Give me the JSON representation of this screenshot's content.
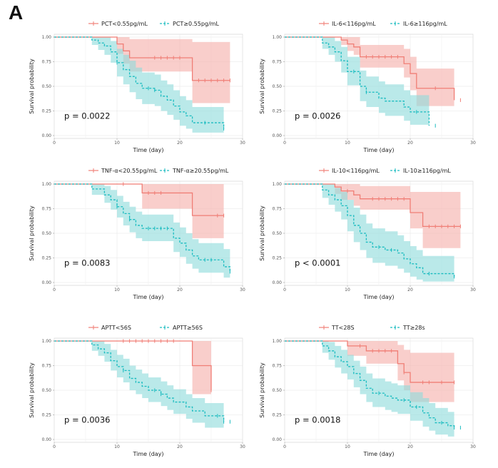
{
  "panel_label": "A",
  "colors": {
    "low": "#f07e76",
    "high": "#1bbcc0",
    "low_band": "#f6b0ab",
    "high_band": "#8fdbdc",
    "overlap": "#9aa3a3"
  },
  "chart_data": [
    {
      "type": "line",
      "legend": [
        "PCT<0.55pg/mL",
        "PCT≥0.55pg/mL"
      ],
      "legend_position": "top",
      "xlabel": "Time (day)",
      "ylabel": "Survival probability",
      "xticks": [
        "0",
        "10",
        "20",
        "30"
      ],
      "yticks": [
        "0.00",
        "0.25",
        "0.50",
        "0.75",
        "1.00"
      ],
      "xlim": [
        0,
        30
      ],
      "ylim": [
        0,
        1
      ],
      "grid": true,
      "p_value": "p = 0.0022",
      "series": [
        {
          "name": "PCT<0.55pg/mL",
          "style": "solid",
          "x": [
            0,
            10,
            11,
            12,
            14,
            22,
            28
          ],
          "y": [
            1.0,
            0.93,
            0.86,
            0.79,
            0.79,
            0.56,
            0.56
          ],
          "lower": [
            1.0,
            0.83,
            0.73,
            0.65,
            0.65,
            0.33,
            0.33
          ],
          "upper": [
            1.0,
            1.0,
            1.0,
            0.98,
            0.98,
            0.95,
            0.95
          ],
          "censor_x": [
            16,
            17,
            18,
            19,
            20,
            23,
            24,
            25,
            26,
            27,
            28
          ]
        },
        {
          "name": "PCT≥0.55pg/mL",
          "style": "dashed",
          "x": [
            0,
            6,
            7,
            8,
            9,
            10,
            11,
            12,
            13,
            14,
            16,
            17,
            18,
            19,
            20,
            21,
            22,
            27
          ],
          "y": [
            1.0,
            0.97,
            0.94,
            0.91,
            0.85,
            0.74,
            0.67,
            0.6,
            0.53,
            0.48,
            0.46,
            0.4,
            0.36,
            0.3,
            0.24,
            0.2,
            0.13,
            0.07
          ],
          "lower": [
            1.0,
            0.92,
            0.87,
            0.82,
            0.74,
            0.6,
            0.52,
            0.44,
            0.37,
            0.32,
            0.3,
            0.25,
            0.21,
            0.16,
            0.1,
            0.07,
            0.03,
            0.0
          ],
          "upper": [
            1.0,
            1.0,
            1.0,
            1.0,
            0.96,
            0.88,
            0.82,
            0.76,
            0.69,
            0.64,
            0.62,
            0.56,
            0.52,
            0.46,
            0.4,
            0.36,
            0.29,
            0.22
          ],
          "censor_x": [
            10,
            15,
            16,
            24,
            27
          ]
        }
      ]
    },
    {
      "type": "line",
      "legend": [
        "IL-6<116pg/mL",
        "IL-6≥116pg/mL"
      ],
      "legend_position": "top",
      "xlabel": "Time (day)",
      "ylabel": "Survival probability",
      "xticks": [
        "0",
        "10",
        "20",
        "30"
      ],
      "yticks": [
        "0.00",
        "0.25",
        "0.50",
        "0.75",
        "1.00"
      ],
      "xlim": [
        0,
        30
      ],
      "ylim": [
        0,
        1
      ],
      "grid": true,
      "p_value": "p = 0.0026",
      "series": [
        {
          "name": "IL-6<116pg/mL",
          "style": "solid",
          "x": [
            0,
            9,
            10,
            11,
            12,
            19,
            20,
            21,
            27
          ],
          "y": [
            1.0,
            0.97,
            0.93,
            0.9,
            0.8,
            0.73,
            0.63,
            0.48,
            0.36
          ],
          "lower": [
            1.0,
            0.92,
            0.86,
            0.82,
            0.69,
            0.59,
            0.46,
            0.3,
            0.16
          ],
          "upper": [
            1.0,
            1.0,
            1.0,
            1.0,
            0.92,
            0.88,
            0.8,
            0.68,
            0.58
          ],
          "censor_x": [
            13,
            14,
            15,
            16,
            17,
            18,
            24,
            28
          ]
        },
        {
          "name": "IL-6≥116pg/mL",
          "style": "dashed",
          "x": [
            0,
            6,
            7,
            8,
            9,
            10,
            12,
            13,
            15,
            16,
            19,
            20,
            23
          ],
          "y": [
            1.0,
            0.94,
            0.9,
            0.85,
            0.76,
            0.65,
            0.5,
            0.44,
            0.38,
            0.35,
            0.29,
            0.24,
            0.1
          ],
          "lower": [
            1.0,
            0.88,
            0.82,
            0.75,
            0.64,
            0.51,
            0.35,
            0.29,
            0.23,
            0.2,
            0.15,
            0.11,
            0.02
          ],
          "upper": [
            1.0,
            1.0,
            1.0,
            0.96,
            0.9,
            0.8,
            0.66,
            0.6,
            0.55,
            0.52,
            0.46,
            0.41,
            0.3
          ],
          "censor_x": [
            11,
            13,
            21,
            24
          ]
        }
      ]
    },
    {
      "type": "line",
      "legend": [
        "TNF-α<20.55pg/mL",
        "TNF-α≥20.55pg/mL"
      ],
      "legend_position": "top",
      "xlabel": "Time (day)",
      "ylabel": "Survival probability",
      "xticks": [
        "0",
        "10",
        "20",
        "30"
      ],
      "yticks": [
        "0.00",
        "0.25",
        "0.50",
        "0.75",
        "1.00"
      ],
      "xlim": [
        0,
        30
      ],
      "ylim": [
        0,
        1
      ],
      "grid": true,
      "p_value": "p = 0.0083",
      "series": [
        {
          "name": "TNF-α<20.55pg/mL",
          "style": "solid",
          "x": [
            0,
            14,
            22,
            27
          ],
          "y": [
            1.0,
            0.91,
            0.68,
            0.68
          ],
          "lower": [
            1.0,
            0.75,
            0.45,
            0.45
          ],
          "upper": [
            1.0,
            1.0,
            1.0,
            1.0
          ],
          "censor_x": [
            11,
            15,
            16,
            17,
            26,
            27
          ]
        },
        {
          "name": "TNF-α≥20.55pg/mL",
          "style": "dashed",
          "x": [
            0,
            6,
            8,
            9,
            10,
            11,
            12,
            13,
            14,
            19,
            20,
            21,
            22,
            23,
            27,
            28
          ],
          "y": [
            1.0,
            0.95,
            0.89,
            0.84,
            0.77,
            0.7,
            0.64,
            0.58,
            0.55,
            0.45,
            0.4,
            0.33,
            0.27,
            0.23,
            0.16,
            0.11
          ],
          "lower": [
            1.0,
            0.89,
            0.81,
            0.74,
            0.66,
            0.58,
            0.51,
            0.45,
            0.42,
            0.31,
            0.26,
            0.19,
            0.14,
            0.1,
            0.05,
            0.0
          ],
          "upper": [
            1.0,
            1.0,
            0.98,
            0.94,
            0.88,
            0.82,
            0.77,
            0.72,
            0.69,
            0.61,
            0.56,
            0.5,
            0.44,
            0.4,
            0.34,
            0.28
          ],
          "censor_x": [
            10,
            12,
            15,
            16,
            17,
            18,
            24,
            25,
            28
          ]
        }
      ]
    },
    {
      "type": "line",
      "legend": [
        "IL-10<116pg/mL",
        "IL-10≥116pg/mL"
      ],
      "legend_position": "top",
      "xlabel": "Time (day)",
      "ylabel": "Survival probability",
      "xticks": [
        "0",
        "10",
        "20",
        "30"
      ],
      "yticks": [
        "0.00",
        "0.25",
        "0.50",
        "0.75",
        "1.00"
      ],
      "xlim": [
        0,
        30
      ],
      "ylim": [
        0,
        1
      ],
      "grid": true,
      "p_value": "p < 0.0001",
      "series": [
        {
          "name": "IL-10<116pg/mL",
          "style": "solid",
          "x": [
            0,
            8,
            9,
            11,
            12,
            20,
            22,
            28
          ],
          "y": [
            1.0,
            0.97,
            0.93,
            0.89,
            0.85,
            0.71,
            0.57,
            0.57
          ],
          "lower": [
            1.0,
            0.9,
            0.84,
            0.78,
            0.74,
            0.55,
            0.35,
            0.35
          ],
          "upper": [
            1.0,
            1.0,
            1.0,
            1.0,
            0.98,
            0.92,
            0.92,
            0.92
          ],
          "censor_x": [
            10,
            14,
            15,
            16,
            17,
            18,
            19,
            23,
            24,
            25,
            26,
            27,
            28
          ]
        },
        {
          "name": "IL-10≥116pg/mL",
          "style": "dashed",
          "x": [
            0,
            6,
            7,
            8,
            9,
            10,
            11,
            12,
            13,
            14,
            16,
            18,
            19,
            20,
            21,
            22,
            27
          ],
          "y": [
            1.0,
            0.94,
            0.89,
            0.84,
            0.78,
            0.68,
            0.58,
            0.5,
            0.41,
            0.36,
            0.33,
            0.3,
            0.24,
            0.19,
            0.15,
            0.09,
            0.06
          ],
          "lower": [
            1.0,
            0.86,
            0.79,
            0.72,
            0.64,
            0.52,
            0.41,
            0.33,
            0.25,
            0.2,
            0.17,
            0.14,
            0.1,
            0.06,
            0.03,
            0.01,
            0.0
          ],
          "upper": [
            1.0,
            1.0,
            1.0,
            0.96,
            0.92,
            0.84,
            0.76,
            0.69,
            0.6,
            0.55,
            0.52,
            0.48,
            0.42,
            0.37,
            0.33,
            0.27,
            0.23
          ],
          "censor_x": [
            15,
            17,
            23,
            27
          ]
        }
      ]
    },
    {
      "type": "line",
      "legend": [
        "APTT<56S",
        "APTT≥56S"
      ],
      "legend_position": "top",
      "xlabel": "Time (day)",
      "ylabel": "Survival probability",
      "xticks": [
        "0",
        "10",
        "20",
        "30"
      ],
      "yticks": [
        "0.00",
        "0.25",
        "0.50",
        "0.75",
        "1.00"
      ],
      "xlim": [
        0,
        30
      ],
      "ylim": [
        0,
        1
      ],
      "grid": true,
      "p_value": "p = 0.0036",
      "series": [
        {
          "name": "APTT<56S",
          "style": "solid",
          "x": [
            0,
            20,
            22,
            25
          ],
          "y": [
            1.0,
            1.0,
            0.75,
            0.5
          ],
          "lower": [
            1.0,
            1.0,
            0.46,
            0.2
          ],
          "upper": [
            1.0,
            1.0,
            1.0,
            1.0
          ],
          "censor_x": [
            11,
            12,
            13,
            14,
            15,
            16,
            17,
            18,
            19,
            25
          ]
        },
        {
          "name": "APTT≥56S",
          "style": "dashed",
          "x": [
            0,
            6,
            7,
            8,
            9,
            10,
            11,
            12,
            13,
            14,
            15,
            17,
            18,
            19,
            21,
            22,
            24,
            27
          ],
          "y": [
            1.0,
            0.96,
            0.92,
            0.88,
            0.8,
            0.74,
            0.7,
            0.62,
            0.58,
            0.54,
            0.5,
            0.46,
            0.42,
            0.38,
            0.33,
            0.29,
            0.24,
            0.18
          ],
          "lower": [
            1.0,
            0.9,
            0.85,
            0.79,
            0.7,
            0.63,
            0.58,
            0.5,
            0.46,
            0.42,
            0.38,
            0.34,
            0.3,
            0.26,
            0.21,
            0.17,
            0.12,
            0.06
          ],
          "upper": [
            1.0,
            1.0,
            1.0,
            0.97,
            0.91,
            0.86,
            0.82,
            0.75,
            0.71,
            0.67,
            0.63,
            0.59,
            0.55,
            0.51,
            0.46,
            0.42,
            0.37,
            0.31
          ],
          "censor_x": [
            11,
            16,
            17,
            26,
            27,
            28
          ]
        }
      ]
    },
    {
      "type": "line",
      "legend": [
        "TT<28S",
        "TT≥28s"
      ],
      "legend_position": "top",
      "xlabel": "Time (day)",
      "ylabel": "Survival probability",
      "xticks": [
        "0",
        "10",
        "20",
        "30"
      ],
      "yticks": [
        "0.00",
        "0.25",
        "0.50",
        "0.75",
        "1.00"
      ],
      "xlim": [
        0,
        30
      ],
      "ylim": [
        0,
        1
      ],
      "grid": true,
      "p_value": "p = 0.0018",
      "series": [
        {
          "name": "TT<28S",
          "style": "solid",
          "x": [
            0,
            10,
            11,
            13,
            18,
            19,
            20,
            27
          ],
          "y": [
            1.0,
            0.95,
            0.95,
            0.9,
            0.77,
            0.68,
            0.58,
            0.58
          ],
          "lower": [
            1.0,
            0.85,
            0.85,
            0.77,
            0.6,
            0.5,
            0.38,
            0.38
          ],
          "upper": [
            1.0,
            1.0,
            1.0,
            1.0,
            0.96,
            0.91,
            0.88,
            0.88
          ],
          "censor_x": [
            12,
            14,
            15,
            16,
            17,
            19,
            22,
            23,
            25,
            27
          ]
        },
        {
          "name": "TT≥28s",
          "style": "dashed",
          "x": [
            0,
            6,
            7,
            8,
            9,
            10,
            11,
            12,
            13,
            14,
            16,
            17,
            18,
            20,
            22,
            23,
            24,
            26,
            27
          ],
          "y": [
            1.0,
            0.95,
            0.9,
            0.84,
            0.79,
            0.74,
            0.67,
            0.6,
            0.52,
            0.47,
            0.44,
            0.42,
            0.4,
            0.33,
            0.27,
            0.22,
            0.17,
            0.14,
            0.12
          ],
          "lower": [
            1.0,
            0.88,
            0.81,
            0.73,
            0.67,
            0.61,
            0.53,
            0.46,
            0.38,
            0.33,
            0.3,
            0.28,
            0.26,
            0.19,
            0.13,
            0.09,
            0.05,
            0.03,
            0.02
          ],
          "upper": [
            1.0,
            1.0,
            0.99,
            0.95,
            0.91,
            0.86,
            0.8,
            0.74,
            0.67,
            0.62,
            0.59,
            0.57,
            0.55,
            0.48,
            0.42,
            0.37,
            0.32,
            0.28,
            0.25
          ],
          "censor_x": [
            15,
            19,
            21,
            25,
            27,
            28
          ]
        }
      ]
    }
  ]
}
